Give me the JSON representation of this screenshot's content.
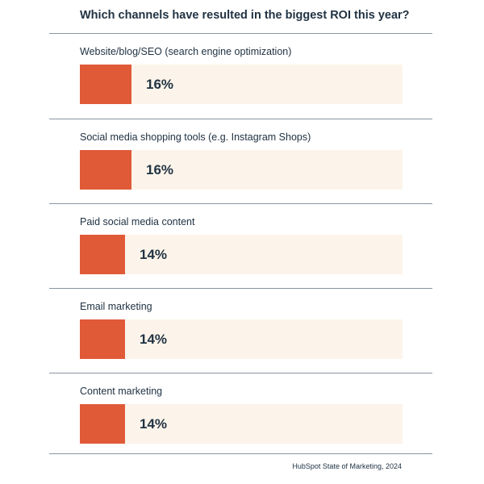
{
  "chart_data": {
    "type": "bar",
    "orientation": "horizontal",
    "title": "Which channels have resulted in the biggest ROI this year?",
    "categories": [
      "Website/blog/SEO (search engine optimization)",
      "Social media shopping tools (e.g. Instagram Shops)",
      "Paid social media content",
      "Email marketing",
      "Content marketing"
    ],
    "values": [
      16,
      16,
      14,
      14,
      14
    ],
    "value_labels": [
      "16%",
      "16%",
      "14%",
      "14%",
      "14%"
    ],
    "unit": "%",
    "source": "HubSpot State of Marketing, 2024",
    "colors": {
      "bar": "#e05a38",
      "track": "#fcf4ea",
      "text": "#213343",
      "rule": "#8a96a0"
    }
  }
}
